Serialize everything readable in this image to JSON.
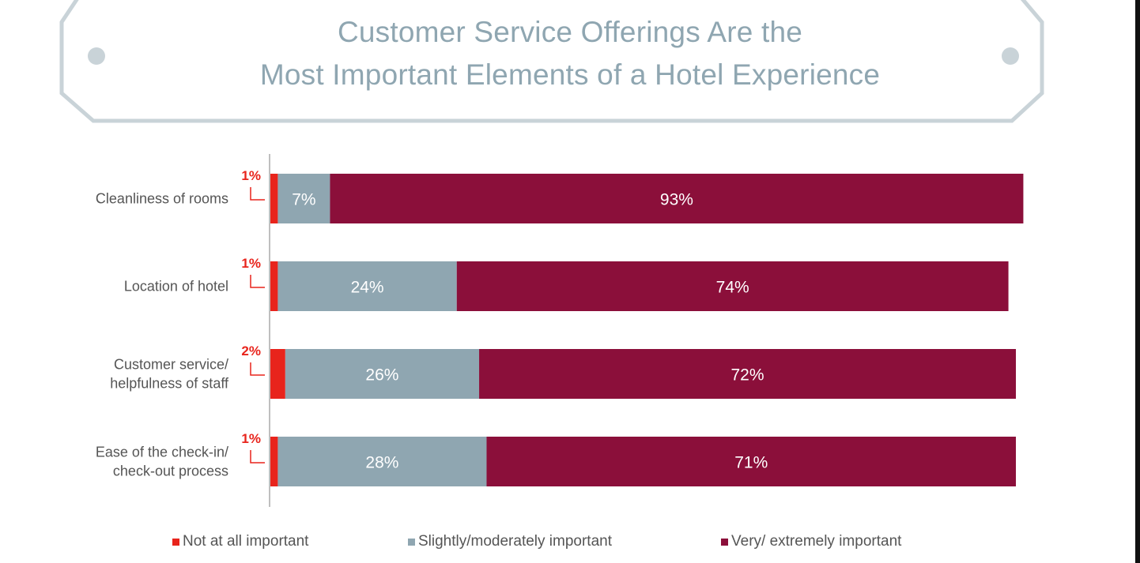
{
  "title": {
    "line1": "Customer Service Offerings Are the",
    "line2": "Most Important Elements of a Hotel Experience"
  },
  "colors": {
    "frame": "#c9d3d8",
    "title": "#8fa6b1",
    "not_important": "#e8241c",
    "slightly": "#8fa6b1",
    "very": "#8b0f3a"
  },
  "chart_data": {
    "type": "bar",
    "orientation": "horizontal",
    "stacked": true,
    "categories": [
      [
        "Cleanliness of rooms"
      ],
      [
        "Location of hotel"
      ],
      [
        "Customer service/",
        "helpfulness of staff"
      ],
      [
        "Ease of the check-in/",
        "check-out process"
      ]
    ],
    "series": [
      {
        "name": "Not at all important",
        "values": [
          1,
          1,
          2,
          1
        ],
        "labels": [
          "1%",
          "1%",
          "2%",
          "1%"
        ],
        "color": "#e8241c"
      },
      {
        "name": "Slightly/moderately important",
        "values": [
          7,
          24,
          26,
          28
        ],
        "labels": [
          "7%",
          "24%",
          "26%",
          "28%"
        ],
        "color": "#8fa6b1"
      },
      {
        "name": "Very/ extremely important",
        "values": [
          93,
          74,
          72,
          71
        ],
        "labels": [
          "93%",
          "74%",
          "72%",
          "71%"
        ],
        "color": "#8b0f3a"
      }
    ],
    "legend_position": "bottom",
    "grid": false
  },
  "legend": [
    {
      "label": "Not at all important",
      "color": "#e8241c"
    },
    {
      "label": "Slightly/moderately important",
      "color": "#8fa6b1"
    },
    {
      "label": "Very/ extremely important",
      "color": "#8b0f3a"
    }
  ]
}
